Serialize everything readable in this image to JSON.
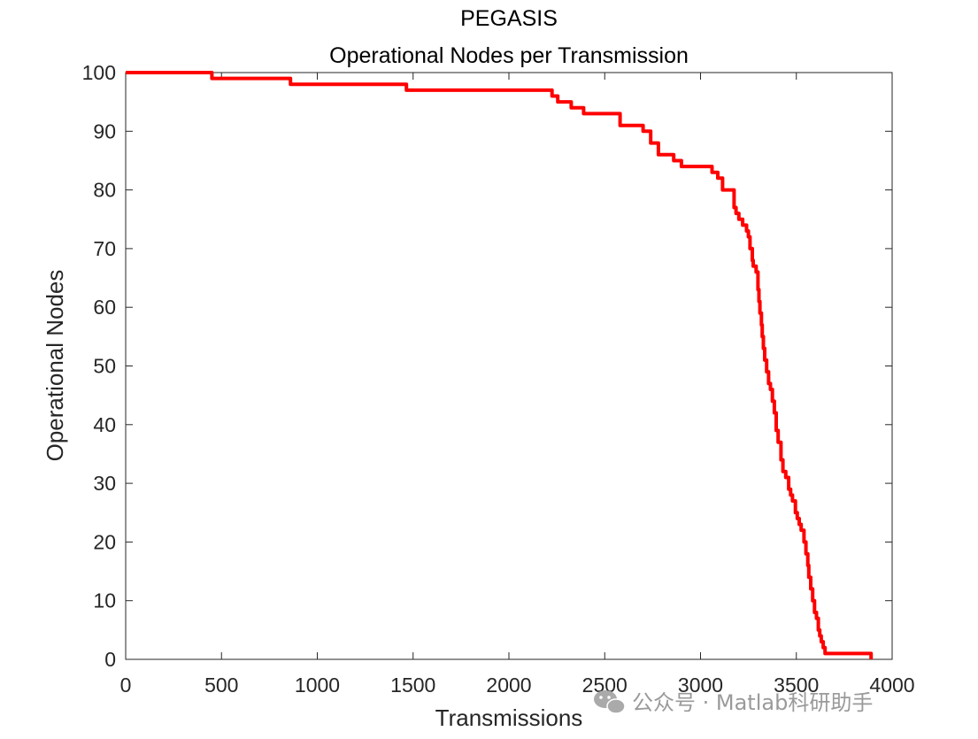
{
  "chart_data": {
    "type": "line",
    "title": "PEGASIS",
    "subtitle": "Operational Nodes per Transmission",
    "xlabel": "Transmissions",
    "ylabel": "Operational Nodes",
    "xlim": [
      0,
      4000
    ],
    "ylim": [
      0,
      100
    ],
    "xticks": [
      0,
      500,
      1000,
      1500,
      2000,
      2500,
      3000,
      3500,
      4000
    ],
    "yticks": [
      0,
      10,
      20,
      30,
      40,
      50,
      60,
      70,
      80,
      90,
      100
    ],
    "xtick_labels": [
      "0",
      "500",
      "1000",
      "1500",
      "2000",
      "2500",
      "3000",
      "3500",
      "4000"
    ],
    "ytick_labels": [
      "0",
      "10",
      "20",
      "30",
      "40",
      "50",
      "60",
      "70",
      "80",
      "90",
      "100"
    ],
    "grid": false,
    "line_color": "#ff0000",
    "series": [
      {
        "step": true,
        "x": [
          0,
          450,
          860,
          1465,
          2225,
          2255,
          2325,
          2390,
          2580,
          2700,
          2740,
          2780,
          2860,
          2900,
          3060,
          3090,
          3115,
          3175,
          3185,
          3200,
          3220,
          3240,
          3250,
          3258,
          3270,
          3275,
          3290,
          3300,
          3305,
          3310,
          3318,
          3322,
          3328,
          3335,
          3345,
          3355,
          3365,
          3375,
          3385,
          3395,
          3405,
          3420,
          3430,
          3445,
          3460,
          3470,
          3480,
          3495,
          3505,
          3515,
          3525,
          3540,
          3550,
          3560,
          3565,
          3575,
          3585,
          3595,
          3605,
          3615,
          3622,
          3630,
          3640,
          3650,
          3660,
          3672,
          3695,
          3720,
          3745,
          3890
        ],
        "y": [
          100,
          99,
          98,
          97,
          96,
          95,
          94,
          93,
          91,
          90,
          88,
          86,
          85,
          84,
          83,
          82,
          80,
          77,
          76,
          75,
          74,
          73,
          72,
          70,
          68,
          67,
          66,
          63,
          61,
          59,
          57,
          55,
          53,
          51,
          49,
          47,
          46,
          44,
          42,
          39,
          37,
          34,
          32,
          31,
          29,
          28,
          27,
          25,
          24,
          23,
          22,
          20,
          18,
          16,
          14,
          12,
          10,
          8,
          7,
          5,
          4,
          3,
          2,
          1,
          1,
          1,
          1,
          1,
          1,
          0
        ]
      }
    ]
  },
  "watermark": {
    "text": "公众号 · Matlab科研助手",
    "icon": "wechat-icon"
  }
}
